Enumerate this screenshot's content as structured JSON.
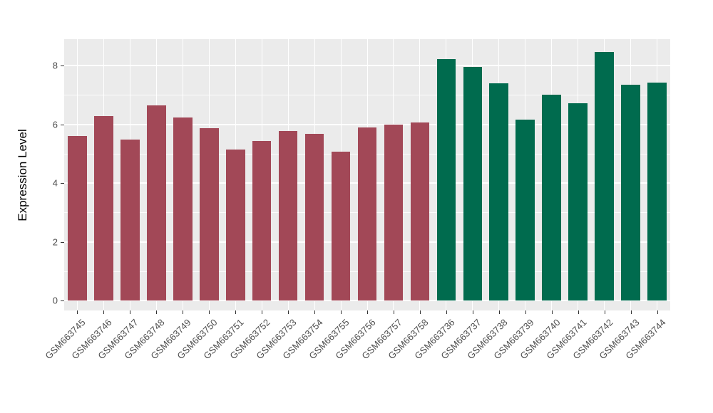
{
  "chart_data": {
    "type": "bar",
    "title": "",
    "xlabel": "",
    "ylabel": "Expression Level",
    "ylim": [
      0,
      8.9
    ],
    "yticks_major": [
      0,
      2,
      4,
      6,
      8
    ],
    "yticks_minor": [
      1,
      3,
      5,
      7
    ],
    "grid": "on",
    "legend_position": "none",
    "panel_background": "#EBEBEB",
    "gridline_color": "#ffffff",
    "group_colors": {
      "group1": "#A24857",
      "group2": "#006B4E"
    },
    "categories": [
      "GSM663745",
      "GSM663746",
      "GSM663747",
      "GSM663748",
      "GSM663749",
      "GSM663750",
      "GSM663751",
      "GSM663752",
      "GSM663753",
      "GSM663754",
      "GSM663755",
      "GSM663756",
      "GSM663757",
      "GSM663758",
      "GSM663736",
      "GSM663737",
      "GSM663738",
      "GSM663739",
      "GSM663740",
      "GSM663741",
      "GSM663742",
      "GSM663743",
      "GSM663744"
    ],
    "values": [
      5.6,
      6.27,
      5.47,
      6.65,
      6.23,
      5.86,
      5.13,
      5.44,
      5.78,
      5.68,
      5.08,
      5.9,
      6.0,
      6.06,
      8.22,
      7.96,
      7.39,
      6.16,
      7.01,
      6.72,
      8.46,
      7.36,
      7.42
    ],
    "groups": [
      "group1",
      "group1",
      "group1",
      "group1",
      "group1",
      "group1",
      "group1",
      "group1",
      "group1",
      "group1",
      "group1",
      "group1",
      "group1",
      "group1",
      "group2",
      "group2",
      "group2",
      "group2",
      "group2",
      "group2",
      "group2",
      "group2",
      "group2"
    ]
  }
}
